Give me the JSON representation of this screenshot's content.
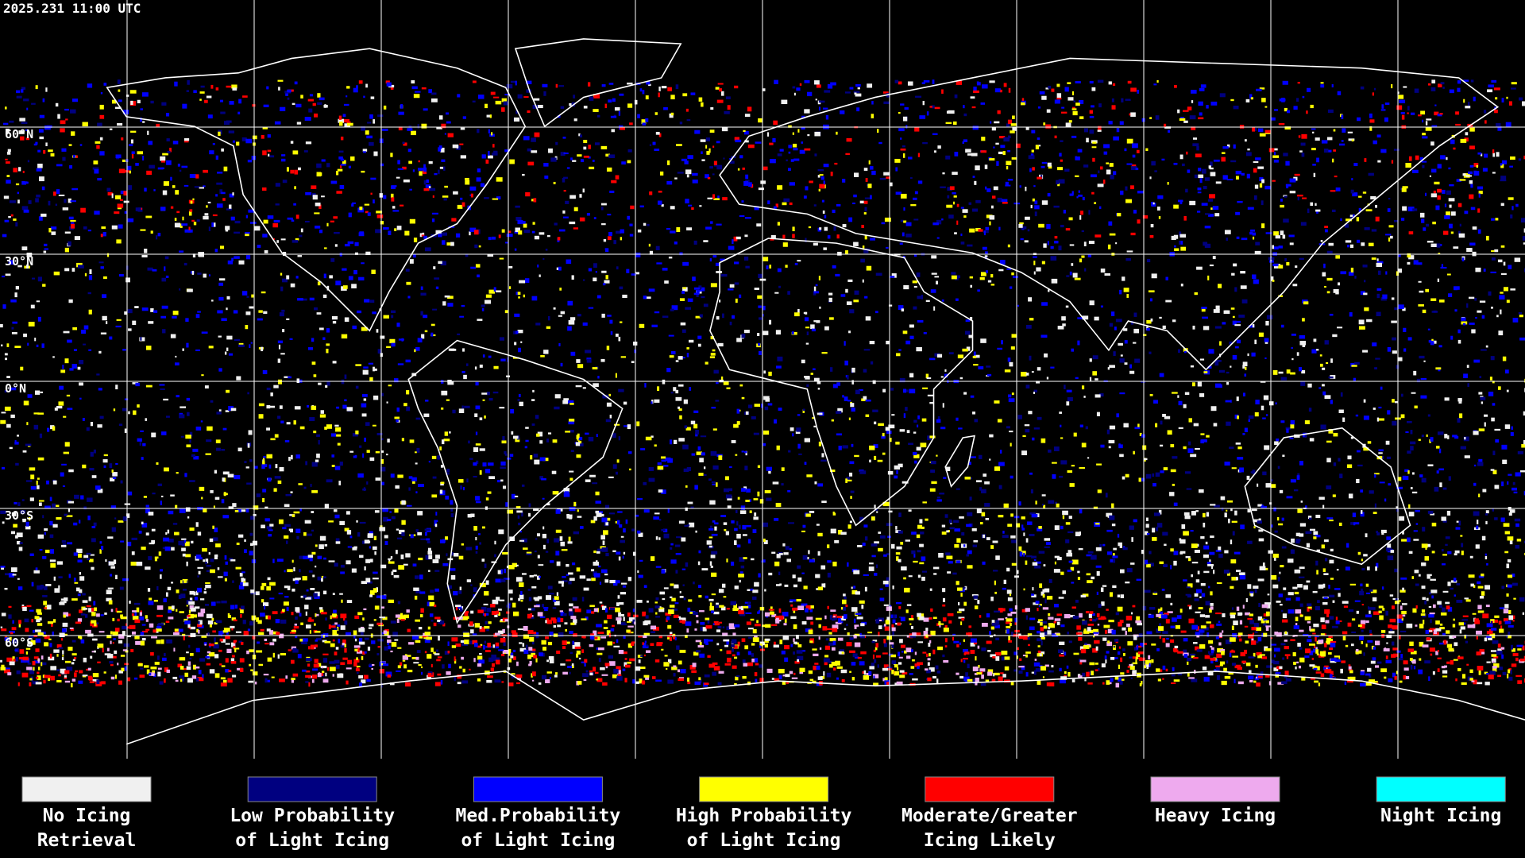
{
  "header": {
    "timestamp": "2025.231 11:00 UTC"
  },
  "map": {
    "latitude_labels": [
      "60°N",
      "30°N",
      "0°N",
      "30°S",
      "60°S"
    ]
  },
  "legend": [
    {
      "lines": [
        "No Icing",
        "Retrieval"
      ],
      "color": "#f0f0f0"
    },
    {
      "lines": [
        "Low Probability",
        "of Light Icing"
      ],
      "color": "#000080"
    },
    {
      "lines": [
        "Med.Probability",
        "of Light Icing"
      ],
      "color": "#0000ff"
    },
    {
      "lines": [
        "High Probability",
        "of Light Icing"
      ],
      "color": "#ffff00"
    },
    {
      "lines": [
        "Moderate/Greater",
        "Icing Likely"
      ],
      "color": "#ff0000"
    },
    {
      "lines": [
        "Heavy Icing"
      ],
      "color": "#eeaaee"
    },
    {
      "lines": [
        "Night Icing"
      ],
      "color": "#00ffff"
    }
  ]
}
